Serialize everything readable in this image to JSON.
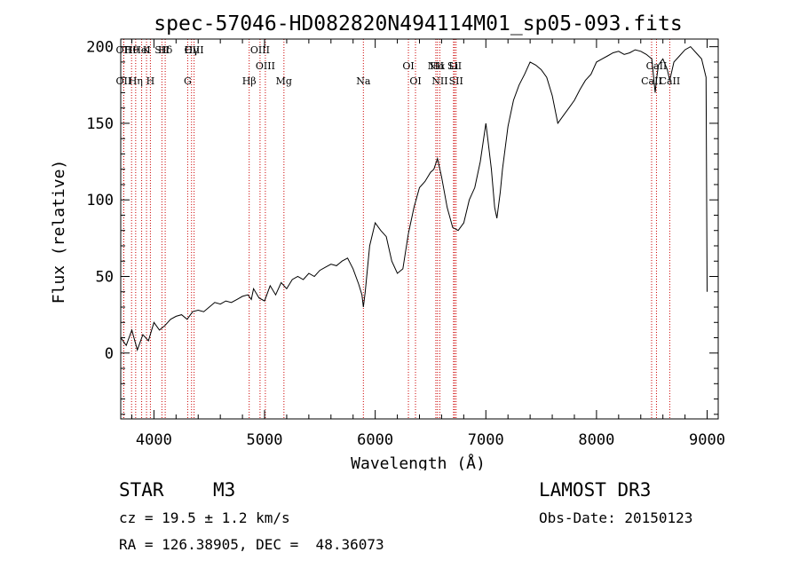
{
  "chart_data": {
    "type": "line",
    "title": "spec-57046-HD082820N494114M01_sp05-093.fits",
    "xlabel": "Wavelength (Å)",
    "ylabel": "Flux (relative)",
    "xlim": [
      3700,
      9100
    ],
    "ylim": [
      -43,
      205
    ],
    "x_ticks": [
      4000,
      5000,
      6000,
      7000,
      8000,
      9000
    ],
    "y_ticks": [
      0,
      50,
      100,
      150,
      200
    ],
    "series": [
      {
        "name": "flux",
        "x": [
          3700,
          3750,
          3800,
          3850,
          3900,
          3950,
          4000,
          4050,
          4100,
          4150,
          4200,
          4250,
          4300,
          4350,
          4400,
          4450,
          4500,
          4550,
          4600,
          4650,
          4700,
          4750,
          4800,
          4850,
          4880,
          4900,
          4950,
          5000,
          5050,
          5100,
          5150,
          5200,
          5250,
          5300,
          5350,
          5400,
          5450,
          5500,
          5550,
          5600,
          5650,
          5700,
          5750,
          5800,
          5850,
          5880,
          5893,
          5910,
          5950,
          6000,
          6050,
          6100,
          6150,
          6200,
          6250,
          6300,
          6350,
          6400,
          6450,
          6500,
          6530,
          6563,
          6600,
          6650,
          6700,
          6750,
          6800,
          6850,
          6900,
          6950,
          7000,
          7020,
          7050,
          7080,
          7100,
          7130,
          7150,
          7200,
          7250,
          7300,
          7350,
          7400,
          7450,
          7500,
          7550,
          7600,
          7650,
          7700,
          7750,
          7800,
          7850,
          7900,
          7950,
          8000,
          8050,
          8100,
          8150,
          8200,
          8250,
          8300,
          8350,
          8400,
          8450,
          8500,
          8530,
          8545,
          8560,
          8600,
          8640,
          8662,
          8700,
          8750,
          8800,
          8850,
          8900,
          8950,
          8990,
          9000
        ],
        "y": [
          10,
          5,
          15,
          2,
          12,
          8,
          20,
          15,
          18,
          22,
          24,
          25,
          22,
          27,
          28,
          27,
          30,
          33,
          32,
          34,
          33,
          35,
          37,
          38,
          35,
          42,
          36,
          34,
          44,
          38,
          46,
          42,
          48,
          50,
          48,
          52,
          50,
          54,
          56,
          58,
          57,
          60,
          62,
          55,
          45,
          38,
          30,
          40,
          70,
          85,
          80,
          76,
          60,
          52,
          55,
          78,
          95,
          108,
          112,
          118,
          120,
          127,
          115,
          95,
          82,
          80,
          85,
          100,
          108,
          125,
          150,
          138,
          120,
          95,
          88,
          105,
          120,
          148,
          165,
          175,
          182,
          190,
          188,
          185,
          180,
          168,
          150,
          155,
          160,
          165,
          172,
          178,
          182,
          190,
          192,
          194,
          196,
          197,
          195,
          196,
          198,
          197,
          195,
          192,
          170,
          180,
          188,
          192,
          185,
          178,
          190,
          194,
          198,
          200,
          196,
          192,
          180,
          40
        ]
      }
    ],
    "line_labels": [
      {
        "name": "Hθ",
        "wavelength": 3798
      },
      {
        "name": "K",
        "wavelength": 3933
      },
      {
        "name": "Hδ",
        "wavelength": 4102
      },
      {
        "name": "OII",
        "wavelength": 3727
      },
      {
        "name": "HeI",
        "wavelength": 3889
      },
      {
        "name": "SII",
        "wavelength": 4072
      },
      {
        "name": "OIII",
        "wavelength": 4363
      },
      {
        "name": "Hγ",
        "wavelength": 4340
      },
      {
        "name": "OIII",
        "wavelength": 4959
      },
      {
        "name": "OIII",
        "wavelength": 5007
      },
      {
        "name": "OI",
        "wavelength": 6300
      },
      {
        "name": "Hα",
        "wavelength": 6563
      },
      {
        "name": "SII",
        "wavelength": 6717
      },
      {
        "name": "NII",
        "wavelength": 6548
      },
      {
        "name": "Li",
        "wavelength": 6708
      },
      {
        "name": "CaII",
        "wavelength": 8542
      },
      {
        "name": "OII",
        "wavelength": 3727
      },
      {
        "name": "Hη",
        "wavelength": 3835
      },
      {
        "name": "H",
        "wavelength": 3968
      },
      {
        "name": "G",
        "wavelength": 4305
      },
      {
        "name": "Hβ",
        "wavelength": 4861
      },
      {
        "name": "Mg",
        "wavelength": 5175
      },
      {
        "name": "Na",
        "wavelength": 5893
      },
      {
        "name": "OI",
        "wavelength": 6364
      },
      {
        "name": "NII",
        "wavelength": 6584
      },
      {
        "name": "SII",
        "wavelength": 6731
      },
      {
        "name": "CaII",
        "wavelength": 8498
      },
      {
        "name": "CaII",
        "wavelength": 8662
      }
    ]
  },
  "info": {
    "object_class": "STAR",
    "subclass": "M3",
    "survey": "LAMOST DR3",
    "cz_line": "cz = 19.5 ± 1.2 km/s",
    "obs_date": "Obs-Date: 20150123",
    "coords": "RA = 126.38905, DEC =  48.36073"
  },
  "colors": {
    "line": "#000000",
    "marker": "#cc0000"
  }
}
